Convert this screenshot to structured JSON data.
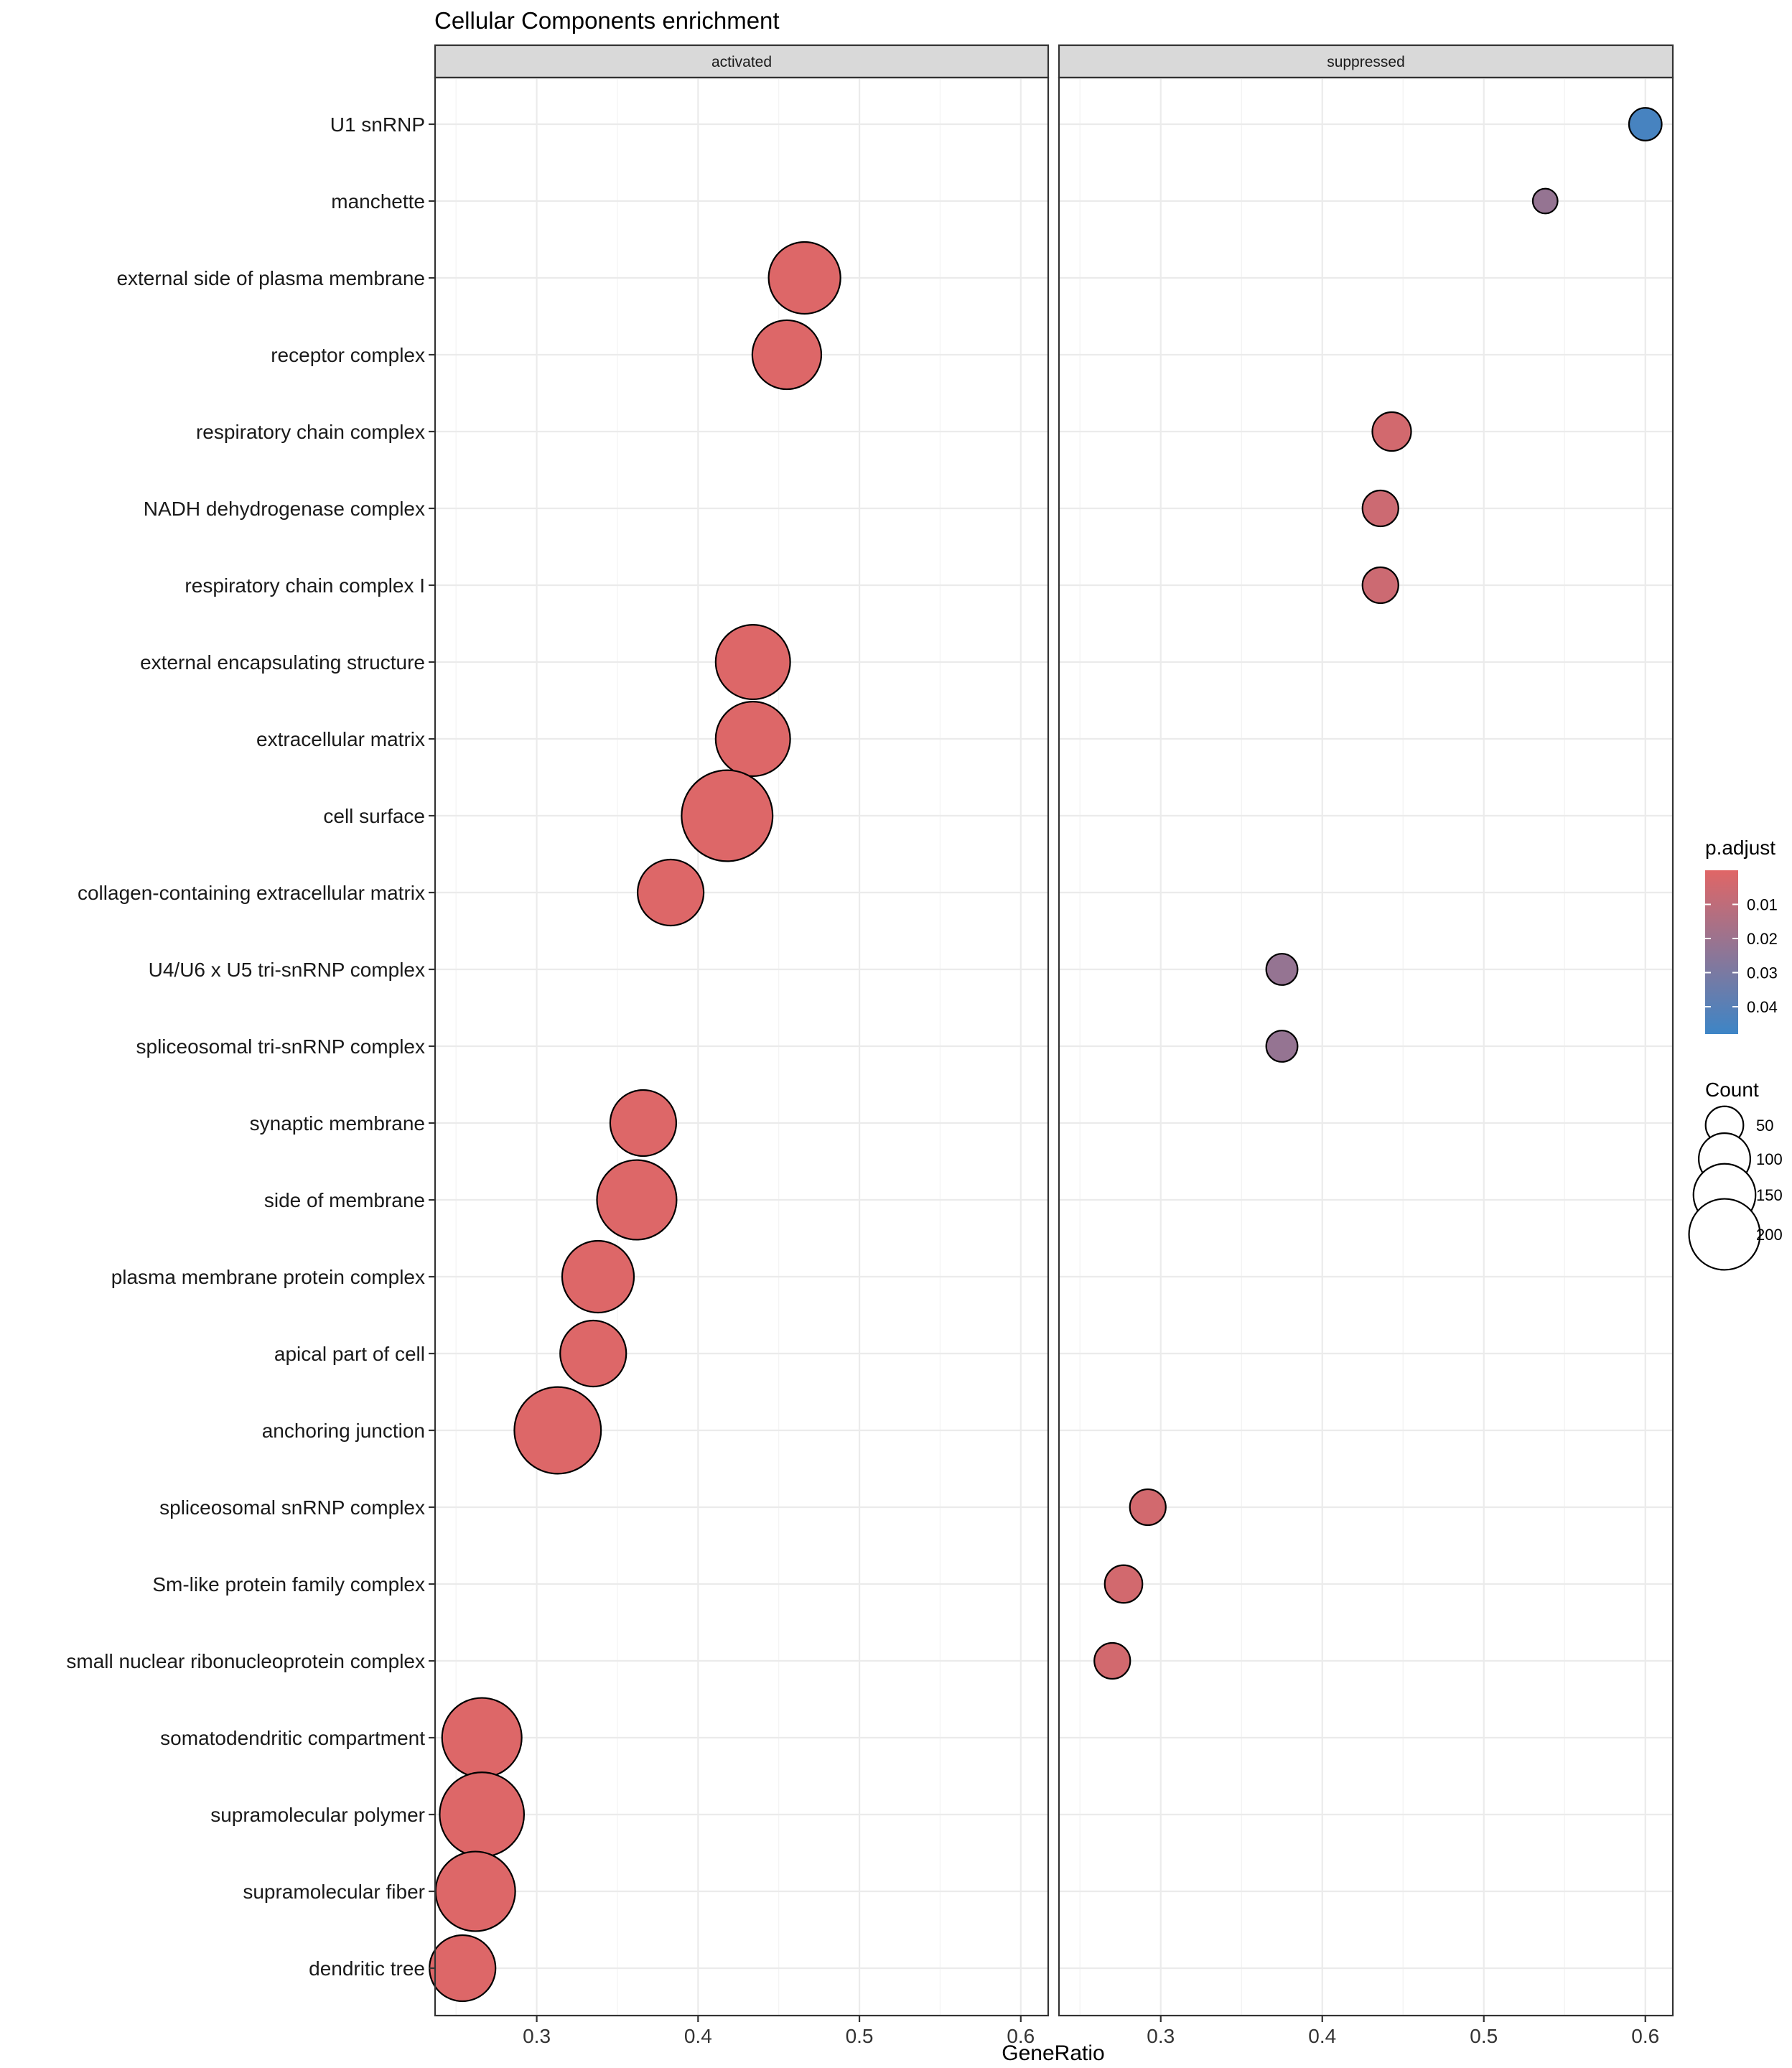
{
  "chart_data": {
    "type": "scatter",
    "title": "Cellular Components enrichment",
    "xlabel": "GeneRatio",
    "ylabel": "",
    "xlim": [
      0.237,
      0.617
    ],
    "xticks": [
      0.3,
      0.4,
      0.5,
      0.6
    ],
    "xtick_labels": [
      "0.3",
      "0.4",
      "0.5",
      "0.6"
    ],
    "facets": [
      {
        "label": "activated"
      },
      {
        "label": "suppressed"
      }
    ],
    "categories": [
      "U1 snRNP",
      "manchette",
      "external side of plasma membrane",
      "receptor complex",
      "respiratory chain complex",
      "NADH dehydrogenase complex",
      "respiratory chain complex I",
      "external encapsulating structure",
      "extracellular matrix",
      "cell surface",
      "collagen-containing extracellular matrix",
      "U4/U6 x U5 tri-snRNP complex",
      "spliceosomal tri-snRNP complex",
      "synaptic membrane",
      "side of membrane",
      "plasma membrane protein complex",
      "apical part of cell",
      "anchoring junction",
      "spliceosomal snRNP complex",
      "Sm-like protein family complex",
      "small nuclear ribonucleoprotein complex",
      "somatodendritic compartment",
      "supramolecular polymer",
      "supramolecular fiber",
      "dendritic tree"
    ],
    "points": [
      {
        "facet": "suppressed",
        "term": "U1 snRNP",
        "gene_ratio": 0.6,
        "count": 20,
        "p_adjust": 0.045
      },
      {
        "facet": "suppressed",
        "term": "manchette",
        "gene_ratio": 0.538,
        "count": 10,
        "p_adjust": 0.022
      },
      {
        "facet": "activated",
        "term": "external side of plasma membrane",
        "gene_ratio": 0.466,
        "count": 120,
        "p_adjust": 0.001
      },
      {
        "facet": "activated",
        "term": "receptor complex",
        "gene_ratio": 0.455,
        "count": 110,
        "p_adjust": 0.001
      },
      {
        "facet": "suppressed",
        "term": "respiratory chain complex",
        "gene_ratio": 0.443,
        "count": 30,
        "p_adjust": 0.004
      },
      {
        "facet": "suppressed",
        "term": "NADH dehydrogenase complex",
        "gene_ratio": 0.436,
        "count": 25,
        "p_adjust": 0.006
      },
      {
        "facet": "suppressed",
        "term": "respiratory chain complex I",
        "gene_ratio": 0.436,
        "count": 25,
        "p_adjust": 0.006
      },
      {
        "facet": "activated",
        "term": "external encapsulating structure",
        "gene_ratio": 0.434,
        "count": 130,
        "p_adjust": 0.001
      },
      {
        "facet": "activated",
        "term": "extracellular matrix",
        "gene_ratio": 0.434,
        "count": 130,
        "p_adjust": 0.001
      },
      {
        "facet": "activated",
        "term": "cell surface",
        "gene_ratio": 0.418,
        "count": 200,
        "p_adjust": 0.001
      },
      {
        "facet": "activated",
        "term": "collagen-containing extracellular matrix",
        "gene_ratio": 0.383,
        "count": 100,
        "p_adjust": 0.001
      },
      {
        "facet": "suppressed",
        "term": "U4/U6 x U5 tri-snRNP complex",
        "gene_ratio": 0.375,
        "count": 18,
        "p_adjust": 0.022
      },
      {
        "facet": "suppressed",
        "term": "spliceosomal tri-snRNP complex",
        "gene_ratio": 0.375,
        "count": 18,
        "p_adjust": 0.022
      },
      {
        "facet": "activated",
        "term": "synaptic membrane",
        "gene_ratio": 0.366,
        "count": 100,
        "p_adjust": 0.001
      },
      {
        "facet": "activated",
        "term": "side of membrane",
        "gene_ratio": 0.362,
        "count": 150,
        "p_adjust": 0.001
      },
      {
        "facet": "activated",
        "term": "plasma membrane protein complex",
        "gene_ratio": 0.338,
        "count": 120,
        "p_adjust": 0.001
      },
      {
        "facet": "activated",
        "term": "apical part of cell",
        "gene_ratio": 0.335,
        "count": 100,
        "p_adjust": 0.001
      },
      {
        "facet": "activated",
        "term": "anchoring junction",
        "gene_ratio": 0.313,
        "count": 180,
        "p_adjust": 0.001
      },
      {
        "facet": "suppressed",
        "term": "spliceosomal snRNP complex",
        "gene_ratio": 0.292,
        "count": 25,
        "p_adjust": 0.004
      },
      {
        "facet": "suppressed",
        "term": "Sm-like protein family complex",
        "gene_ratio": 0.277,
        "count": 28,
        "p_adjust": 0.004
      },
      {
        "facet": "suppressed",
        "term": "small nuclear ribonucleoprotein complex",
        "gene_ratio": 0.27,
        "count": 25,
        "p_adjust": 0.004
      },
      {
        "facet": "activated",
        "term": "somatodendritic compartment",
        "gene_ratio": 0.266,
        "count": 150,
        "p_adjust": 0.001
      },
      {
        "facet": "activated",
        "term": "supramolecular polymer",
        "gene_ratio": 0.266,
        "count": 170,
        "p_adjust": 0.001
      },
      {
        "facet": "activated",
        "term": "supramolecular fiber",
        "gene_ratio": 0.262,
        "count": 150,
        "p_adjust": 0.001
      },
      {
        "facet": "activated",
        "term": "dendritic tree",
        "gene_ratio": 0.254,
        "count": 100,
        "p_adjust": 0.001
      }
    ],
    "legend": {
      "color": {
        "title": "p.adjust",
        "breaks": [
          0.01,
          0.02,
          0.03,
          0.04
        ],
        "labels": [
          "0.01",
          "0.02",
          "0.03",
          "0.04"
        ],
        "range": [
          0.0,
          0.048
        ],
        "low_color": "#e06666",
        "high_color": "#3d85c6"
      },
      "size": {
        "title": "Count",
        "breaks": [
          50,
          100,
          150,
          200
        ],
        "labels": [
          "50",
          "100",
          "150",
          "200"
        ]
      },
      "position": "right"
    },
    "grid": true
  }
}
